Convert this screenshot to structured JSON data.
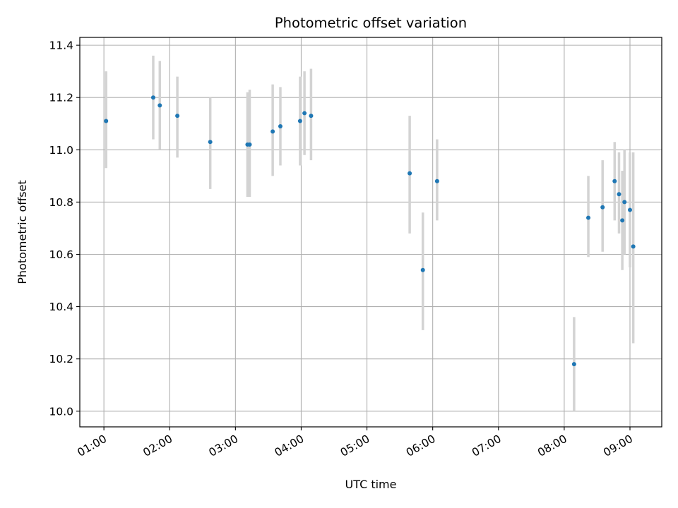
{
  "chart_data": {
    "type": "scatter",
    "title": "Photometric offset variation",
    "xlabel": "UTC time",
    "ylabel": "Photometric offset",
    "x_unit": "UTC time (hours)",
    "xlim": [
      "00:38",
      "09:29"
    ],
    "ylim": [
      9.94,
      11.43
    ],
    "x_ticks": [
      "01:00",
      "02:00",
      "03:00",
      "04:00",
      "05:00",
      "06:00",
      "07:00",
      "08:00",
      "09:00"
    ],
    "y_ticks": [
      "10.0",
      "10.2",
      "10.4",
      "10.6",
      "10.8",
      "11.0",
      "11.2",
      "11.4"
    ],
    "grid": true,
    "marker_color": "#1f77b4",
    "errorbar_color": "#d3d3d3",
    "series": [
      {
        "points": [
          {
            "x": "01:02",
            "y": 11.11,
            "yerr_low": 10.93,
            "yerr_high": 11.3
          },
          {
            "x": "01:45",
            "y": 11.2,
            "yerr_low": 11.04,
            "yerr_high": 11.36
          },
          {
            "x": "01:51",
            "y": 11.17,
            "yerr_low": 11.0,
            "yerr_high": 11.34
          },
          {
            "x": "02:07",
            "y": 11.13,
            "yerr_low": 10.97,
            "yerr_high": 11.28
          },
          {
            "x": "02:37",
            "y": 11.03,
            "yerr_low": 10.85,
            "yerr_high": 11.2
          },
          {
            "x": "03:11",
            "y": 11.02,
            "yerr_low": 10.82,
            "yerr_high": 11.22
          },
          {
            "x": "03:13",
            "y": 11.02,
            "yerr_low": 10.82,
            "yerr_high": 11.23
          },
          {
            "x": "03:34",
            "y": 11.07,
            "yerr_low": 10.9,
            "yerr_high": 11.25
          },
          {
            "x": "03:41",
            "y": 11.09,
            "yerr_low": 10.94,
            "yerr_high": 11.24
          },
          {
            "x": "03:59",
            "y": 11.11,
            "yerr_low": 10.94,
            "yerr_high": 11.28
          },
          {
            "x": "04:03",
            "y": 11.14,
            "yerr_low": 10.98,
            "yerr_high": 11.3
          },
          {
            "x": "04:09",
            "y": 11.13,
            "yerr_low": 10.96,
            "yerr_high": 11.31
          },
          {
            "x": "05:39",
            "y": 10.91,
            "yerr_low": 10.68,
            "yerr_high": 11.13
          },
          {
            "x": "05:51",
            "y": 10.54,
            "yerr_low": 10.31,
            "yerr_high": 10.76
          },
          {
            "x": "06:04",
            "y": 10.88,
            "yerr_low": 10.73,
            "yerr_high": 11.04
          },
          {
            "x": "08:09",
            "y": 10.18,
            "yerr_low": 10.0,
            "yerr_high": 10.36
          },
          {
            "x": "08:22",
            "y": 10.74,
            "yerr_low": 10.59,
            "yerr_high": 10.9
          },
          {
            "x": "08:35",
            "y": 10.78,
            "yerr_low": 10.61,
            "yerr_high": 10.96
          },
          {
            "x": "08:46",
            "y": 10.88,
            "yerr_low": 10.73,
            "yerr_high": 11.03
          },
          {
            "x": "08:50",
            "y": 10.83,
            "yerr_low": 10.68,
            "yerr_high": 10.99
          },
          {
            "x": "08:53",
            "y": 10.73,
            "yerr_low": 10.54,
            "yerr_high": 10.92
          },
          {
            "x": "08:55",
            "y": 10.8,
            "yerr_low": 10.6,
            "yerr_high": 11.0
          },
          {
            "x": "09:00",
            "y": 10.77,
            "yerr_low": 10.55,
            "yerr_high": 10.99
          },
          {
            "x": "09:03",
            "y": 10.63,
            "yerr_low": 10.26,
            "yerr_high": 10.99
          }
        ]
      }
    ]
  }
}
